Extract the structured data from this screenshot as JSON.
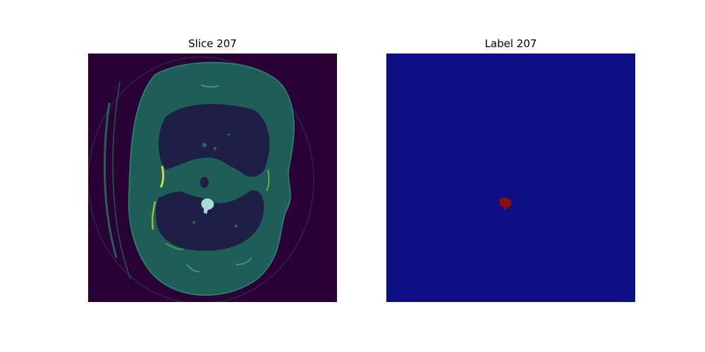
{
  "figure": {
    "panels": [
      {
        "title": "Slice 207",
        "kind": "ct-slice-overlay",
        "colors": {
          "background": "#2a0134",
          "tissue": "#1f5d58",
          "tissue_edge": "#2a7a6a",
          "lung": "#1d1f44",
          "bone_highlight": "#c9d84a",
          "mask_overlay": "#a8dcd6"
        }
      },
      {
        "title": "Label 207",
        "kind": "segmentation-label",
        "colors": {
          "background": "#0e0f85",
          "label": "#8b0e0a"
        }
      }
    ]
  }
}
